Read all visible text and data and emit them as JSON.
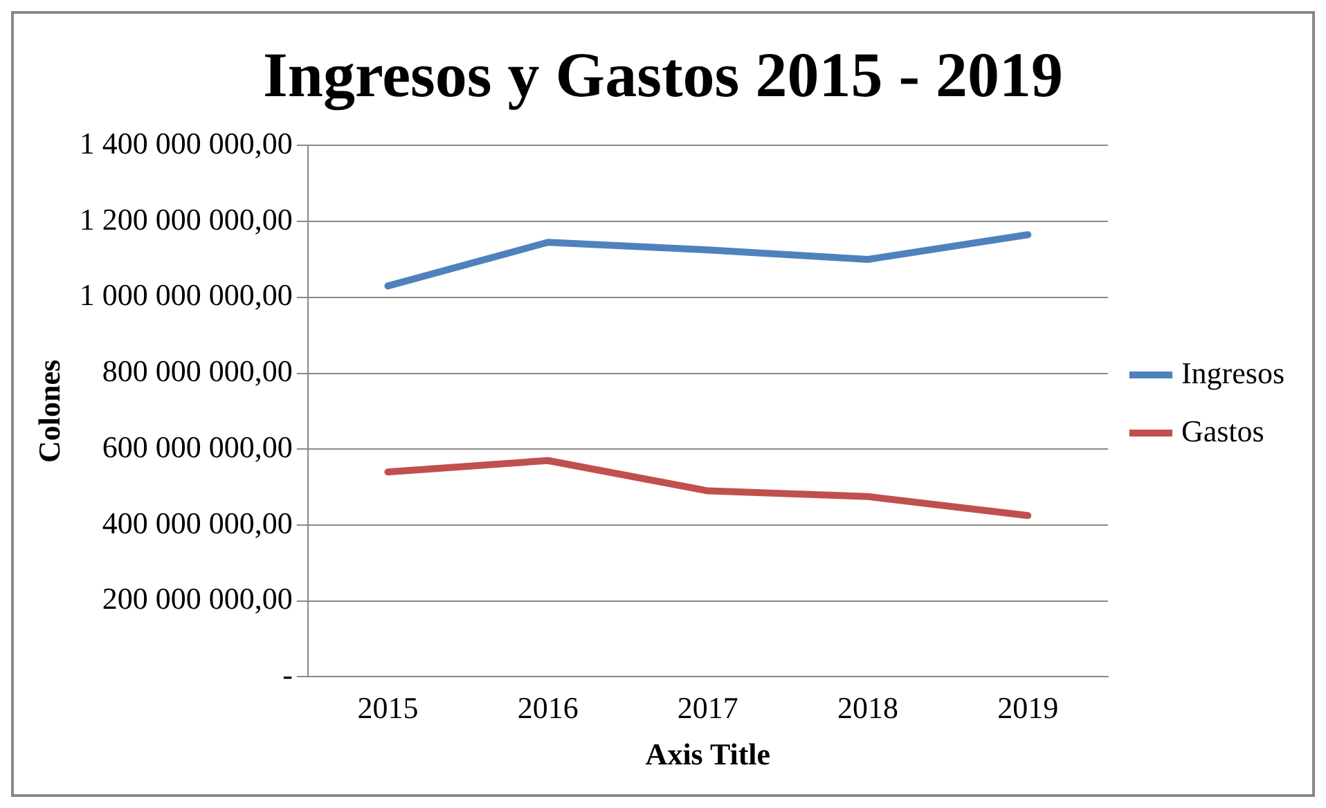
{
  "chart_data": {
    "type": "line",
    "title": "Ingresos y Gastos 2015 - 2019",
    "xlabel": "Axis Title",
    "ylabel": "Colones",
    "categories": [
      "2015",
      "2016",
      "2017",
      "2018",
      "2019"
    ],
    "series": [
      {
        "name": "Ingresos",
        "color": "#4f81bd",
        "values": [
          1030000000,
          1145000000,
          1125000000,
          1100000000,
          1165000000
        ]
      },
      {
        "name": "Gastos",
        "color": "#c0504d",
        "values": [
          540000000,
          570000000,
          490000000,
          475000000,
          425000000
        ]
      }
    ],
    "ylim": [
      0,
      1400000000
    ],
    "yticks": [
      {
        "value": 0,
        "label": "-"
      },
      {
        "value": 200000000,
        "label": "200 000 000,00"
      },
      {
        "value": 400000000,
        "label": "400 000 000,00"
      },
      {
        "value": 600000000,
        "label": "600 000 000,00"
      },
      {
        "value": 800000000,
        "label": "800 000 000,00"
      },
      {
        "value": 1000000000,
        "label": "1 000 000 000,00"
      },
      {
        "value": 1200000000,
        "label": "1 200 000 000,00"
      },
      {
        "value": 1400000000,
        "label": "1 400 000 000,00"
      }
    ],
    "grid": "y",
    "legend": "right",
    "marker": "none",
    "line_style": "solid"
  }
}
